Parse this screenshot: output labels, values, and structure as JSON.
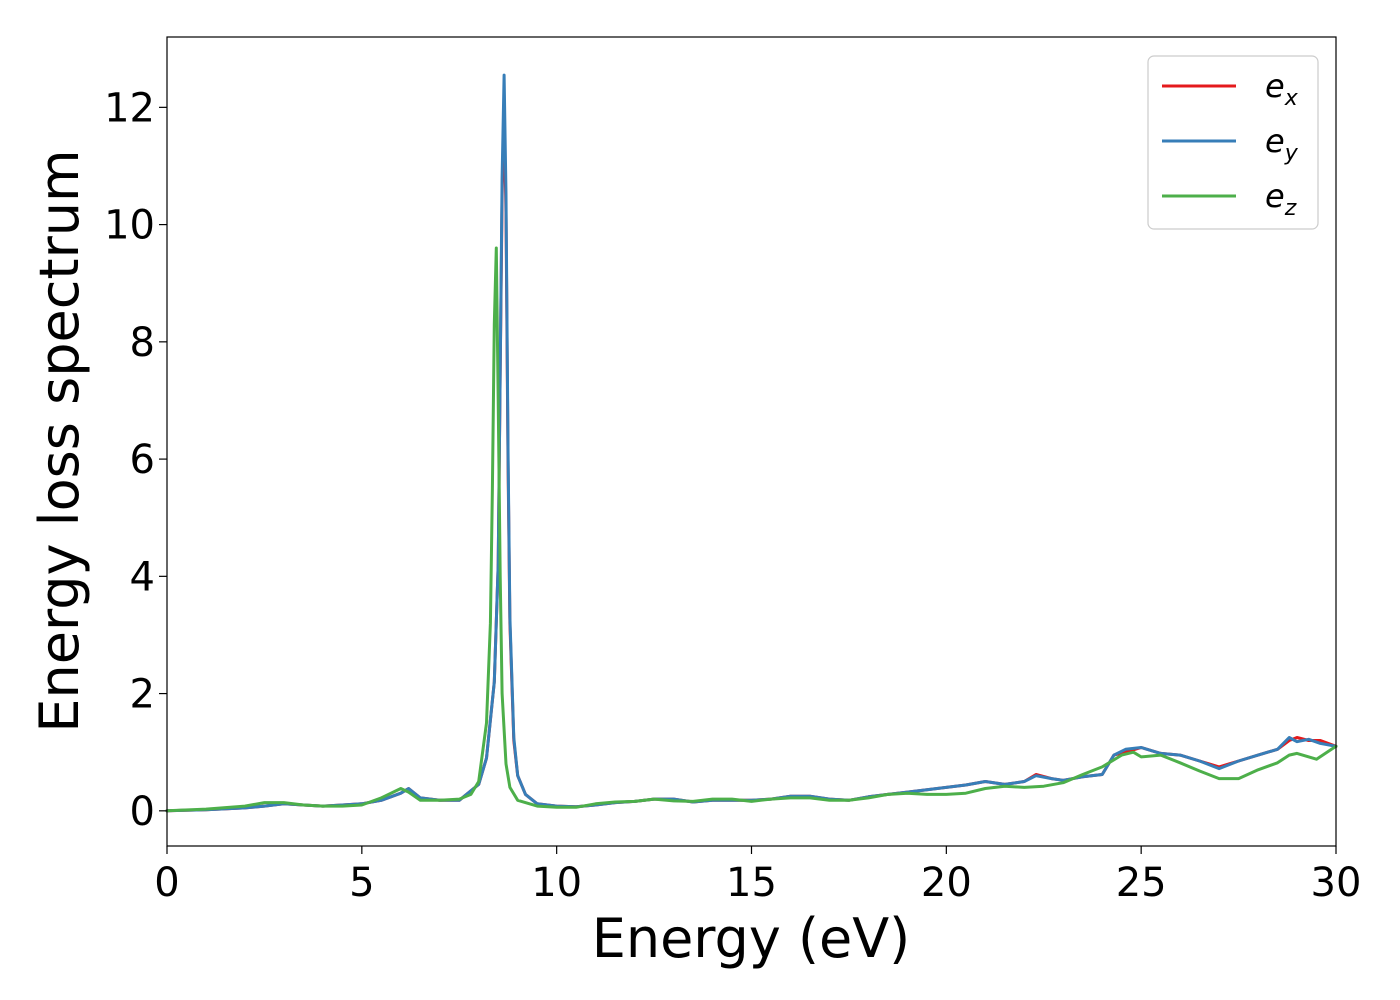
{
  "chart_data": {
    "type": "line",
    "title": "",
    "xlabel": "Energy (eV)",
    "ylabel": "Energy loss spectrum",
    "xlim": [
      0,
      30
    ],
    "ylim": [
      -0.6,
      13.2
    ],
    "xticks": [
      0,
      5,
      10,
      15,
      20,
      25,
      30
    ],
    "yticks": [
      0,
      2,
      4,
      6,
      8,
      10,
      12
    ],
    "grid": false,
    "legend_position": "top-right",
    "series": [
      {
        "name": "e_x",
        "label_base": "e",
        "label_sub": "x",
        "color": "#e41a1c",
        "x": [
          0,
          1,
          2,
          2.5,
          3,
          3.5,
          4,
          4.5,
          5,
          5.5,
          6,
          6.2,
          6.5,
          7,
          7.5,
          8,
          8.2,
          8.4,
          8.5,
          8.55,
          8.6,
          8.65,
          8.7,
          8.75,
          8.8,
          8.9,
          9,
          9.2,
          9.5,
          10,
          10.5,
          11,
          11.5,
          12,
          12.5,
          13,
          13.5,
          14,
          14.5,
          15,
          15.5,
          16,
          16.5,
          17,
          17.5,
          18,
          18.5,
          19,
          19.5,
          20,
          20.5,
          21,
          21.5,
          22,
          22.3,
          22.7,
          23,
          23.5,
          24,
          24.3,
          24.6,
          25,
          25.5,
          26,
          26.5,
          27,
          27.5,
          28,
          28.5,
          28.8,
          29,
          29.3,
          29.6,
          30
        ],
        "y": [
          0,
          0.02,
          0.05,
          0.08,
          0.12,
          0.1,
          0.08,
          0.1,
          0.12,
          0.18,
          0.3,
          0.38,
          0.22,
          0.18,
          0.18,
          0.45,
          0.9,
          2.2,
          4.2,
          7.5,
          10.5,
          12.0,
          10.2,
          6.0,
          3.2,
          1.2,
          0.6,
          0.28,
          0.12,
          0.08,
          0.07,
          0.1,
          0.14,
          0.16,
          0.2,
          0.2,
          0.15,
          0.18,
          0.18,
          0.18,
          0.2,
          0.25,
          0.25,
          0.2,
          0.18,
          0.24,
          0.28,
          0.32,
          0.36,
          0.4,
          0.44,
          0.5,
          0.45,
          0.5,
          0.62,
          0.55,
          0.52,
          0.58,
          0.62,
          0.95,
          1.0,
          1.08,
          0.98,
          0.95,
          0.85,
          0.75,
          0.85,
          0.95,
          1.05,
          1.2,
          1.25,
          1.2,
          1.2,
          1.1
        ]
      },
      {
        "name": "e_y",
        "label_base": "e",
        "label_sub": "y",
        "color": "#377eb8",
        "x": [
          0,
          1,
          2,
          2.5,
          3,
          3.5,
          4,
          4.5,
          5,
          5.5,
          6,
          6.2,
          6.5,
          7,
          7.5,
          8,
          8.2,
          8.4,
          8.5,
          8.55,
          8.6,
          8.65,
          8.7,
          8.75,
          8.8,
          8.9,
          9,
          9.2,
          9.5,
          10,
          10.5,
          11,
          11.5,
          12,
          12.5,
          13,
          13.5,
          14,
          14.5,
          15,
          15.5,
          16,
          16.5,
          17,
          17.5,
          18,
          18.5,
          19,
          19.5,
          20,
          20.5,
          21,
          21.5,
          22,
          22.3,
          22.7,
          23,
          23.5,
          24,
          24.3,
          24.6,
          25,
          25.5,
          26,
          26.5,
          27,
          27.5,
          28,
          28.5,
          28.8,
          29,
          29.3,
          29.6,
          30
        ],
        "y": [
          0,
          0.02,
          0.05,
          0.08,
          0.12,
          0.1,
          0.08,
          0.1,
          0.12,
          0.18,
          0.3,
          0.38,
          0.22,
          0.18,
          0.18,
          0.45,
          0.9,
          2.2,
          4.2,
          7.5,
          10.8,
          12.55,
          10.5,
          6.2,
          3.3,
          1.25,
          0.6,
          0.28,
          0.12,
          0.08,
          0.07,
          0.1,
          0.14,
          0.16,
          0.2,
          0.2,
          0.15,
          0.18,
          0.18,
          0.18,
          0.2,
          0.25,
          0.25,
          0.2,
          0.18,
          0.24,
          0.28,
          0.32,
          0.36,
          0.4,
          0.44,
          0.5,
          0.45,
          0.5,
          0.6,
          0.55,
          0.52,
          0.58,
          0.62,
          0.95,
          1.05,
          1.08,
          0.98,
          0.95,
          0.85,
          0.72,
          0.85,
          0.95,
          1.05,
          1.25,
          1.18,
          1.22,
          1.15,
          1.1
        ]
      },
      {
        "name": "e_z",
        "label_base": "e",
        "label_sub": "z",
        "color": "#4daf4a",
        "x": [
          0,
          1,
          2,
          2.5,
          3,
          3.5,
          4,
          4.5,
          5,
          5.5,
          6,
          6.2,
          6.5,
          7,
          7.5,
          7.8,
          8,
          8.2,
          8.3,
          8.35,
          8.4,
          8.45,
          8.5,
          8.55,
          8.6,
          8.7,
          8.8,
          9,
          9.5,
          10,
          10.5,
          11,
          11.5,
          12,
          12.5,
          13,
          13.5,
          14,
          14.5,
          15,
          15.5,
          16,
          16.5,
          17,
          17.5,
          18,
          18.5,
          19,
          19.5,
          20,
          20.5,
          21,
          21.5,
          22,
          22.5,
          23,
          23.5,
          24,
          24.5,
          24.8,
          25,
          25.5,
          26,
          26.5,
          27,
          27.5,
          28,
          28.5,
          28.8,
          29,
          29.5,
          30
        ],
        "y": [
          0,
          0.03,
          0.08,
          0.14,
          0.14,
          0.1,
          0.08,
          0.08,
          0.1,
          0.22,
          0.38,
          0.32,
          0.18,
          0.18,
          0.2,
          0.28,
          0.5,
          1.5,
          3.2,
          5.5,
          8.3,
          9.6,
          7.0,
          4.0,
          2.0,
          0.8,
          0.4,
          0.18,
          0.08,
          0.06,
          0.06,
          0.12,
          0.15,
          0.16,
          0.2,
          0.17,
          0.16,
          0.2,
          0.2,
          0.16,
          0.2,
          0.22,
          0.22,
          0.18,
          0.18,
          0.22,
          0.28,
          0.3,
          0.28,
          0.28,
          0.3,
          0.38,
          0.42,
          0.4,
          0.42,
          0.48,
          0.62,
          0.75,
          0.95,
          1.0,
          0.92,
          0.95,
          0.82,
          0.68,
          0.55,
          0.55,
          0.7,
          0.82,
          0.95,
          0.98,
          0.88,
          1.1
        ]
      }
    ]
  }
}
